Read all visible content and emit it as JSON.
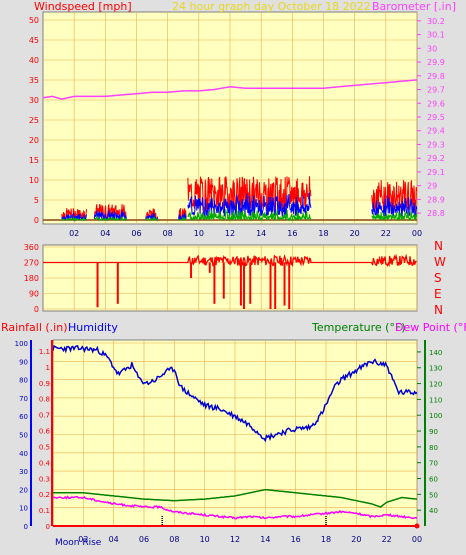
{
  "header": {
    "windspeed_label": "Windspeed [mph]",
    "graph_title": "24 hour graph day   October 18 2022",
    "barometer_label": "Barometer [.in]"
  },
  "direction_labels": [
    "N",
    "W",
    "S",
    "E",
    "N"
  ],
  "bottom_header": {
    "rainfall_label": "Rainfall (.in)",
    "humidity_label": "Humidity",
    "temperature_label": "Temperature (°F)",
    "dewpoint_label": "Dew Point (°F)"
  },
  "moon_rise_label": "Moon Rise",
  "colors": {
    "plot_bg": "#ffffc0",
    "grid": "#e6b050",
    "wind_gust": "#ff0000",
    "wind_avg": "#0000ff",
    "wind_low": "#00aa00",
    "barometer": "#ff40ff",
    "humidity": "#0000d0",
    "temperature": "#008000",
    "dewpoint": "#ff00ff",
    "rain_axis": "#ff0000",
    "humidity_axis": "#0000ff",
    "temp_axis": "#008000"
  },
  "chart_data": [
    {
      "id": "wind-baro",
      "type": "line",
      "title": "24 hour graph day   October 18 2022",
      "x_ticks": [
        "02",
        "04",
        "06",
        "08",
        "10",
        "12",
        "14",
        "16",
        "18",
        "20",
        "22",
        "00"
      ],
      "x_range_hours": [
        0,
        24
      ],
      "y_left": {
        "label": "Windspeed [mph]",
        "ticks": [
          0,
          5,
          10,
          15,
          20,
          25,
          30,
          35,
          40,
          45,
          50
        ],
        "range": [
          0,
          50
        ]
      },
      "y_right": {
        "label": "Barometer [.in]",
        "ticks": [
          28.8,
          28.9,
          29.0,
          29.1,
          29.2,
          29.3,
          29.4,
          29.5,
          29.6,
          29.7,
          29.8,
          29.9,
          30.0,
          30.1,
          30.2
        ],
        "tick_labels": [
          "28.8",
          "28.9",
          "29",
          "29.1",
          "29.2",
          "29.3",
          "29.4",
          "29.5",
          "29.6",
          "29.7",
          "29.8",
          "29.9",
          "30",
          "30.1",
          "30.2"
        ],
        "range": [
          28.75,
          30.25
        ]
      },
      "series": [
        {
          "name": "Barometer",
          "axis": "right",
          "points": [
            [
              0,
              29.64
            ],
            [
              0.6,
              29.65
            ],
            [
              1.2,
              29.63
            ],
            [
              2,
              29.65
            ],
            [
              3,
              29.65
            ],
            [
              4,
              29.65
            ],
            [
              5,
              29.66
            ],
            [
              6,
              29.67
            ],
            [
              7,
              29.68
            ],
            [
              8,
              29.68
            ],
            [
              9,
              29.69
            ],
            [
              10,
              29.69
            ],
            [
              11,
              29.7
            ],
            [
              12,
              29.72
            ],
            [
              13,
              29.71
            ],
            [
              14,
              29.71
            ],
            [
              15,
              29.71
            ],
            [
              16,
              29.71
            ],
            [
              17,
              29.71
            ],
            [
              18,
              29.71
            ],
            [
              19,
              29.72
            ],
            [
              20,
              29.73
            ],
            [
              21,
              29.74
            ],
            [
              22,
              29.75
            ],
            [
              23,
              29.76
            ],
            [
              24,
              29.77
            ]
          ]
        },
        {
          "name": "Wind gust",
          "axis": "left",
          "bands": [
            [
              1.2,
              2.8,
              0,
              3
            ],
            [
              3.3,
              5.4,
              0,
              4
            ],
            [
              6.6,
              7.4,
              0,
              3
            ],
            [
              8.7,
              9.2,
              0,
              3
            ],
            [
              9.3,
              17.2,
              2,
              11
            ],
            [
              21.1,
              24,
              2,
              10
            ]
          ]
        }
      ]
    },
    {
      "id": "wind-direction",
      "type": "line",
      "y_ticks": [
        0,
        90,
        180,
        270,
        360
      ],
      "y_range": [
        0,
        360
      ],
      "series": [
        {
          "name": "Wind direction",
          "baseline": 270,
          "noisy_span": [
            9.3,
            17.2
          ],
          "noisy_span2": [
            21.1,
            24
          ],
          "drops": [
            [
              3.5,
              10
            ],
            [
              4.8,
              30
            ],
            [
              9.5,
              180
            ],
            [
              10.7,
              210
            ],
            [
              11.0,
              30
            ],
            [
              11.6,
              60
            ],
            [
              12.7,
              20
            ],
            [
              12.9,
              0
            ],
            [
              13.3,
              30
            ],
            [
              14.6,
              0
            ],
            [
              14.9,
              0
            ],
            [
              15.5,
              20
            ],
            [
              15.8,
              0
            ]
          ]
        }
      ]
    },
    {
      "id": "rain-humidity-temp",
      "type": "line",
      "y_rain": {
        "label": "Rainfall (.in)",
        "ticks": [
          0,
          0.1,
          0.2,
          0.3,
          0.4,
          0.5,
          0.6,
          0.7,
          0.8,
          0.9,
          1,
          1.1
        ],
        "tick_labels": [
          "0",
          "0.1",
          "0.2",
          "0.3",
          "0.4",
          "0.5",
          "0.6",
          "0.7",
          "0.8",
          "0.9",
          "1",
          "1.1"
        ],
        "range": [
          0,
          1.15
        ]
      },
      "y_humidity": {
        "label": "Humidity",
        "ticks": [
          0,
          10,
          20,
          30,
          40,
          50,
          60,
          70,
          80,
          90,
          100
        ],
        "range": [
          0,
          100
        ]
      },
      "y_temp": {
        "label": "Temperature (°F)",
        "ticks": [
          40,
          50,
          60,
          70,
          80,
          90,
          100,
          110,
          120,
          130,
          140
        ],
        "range": [
          30,
          145
        ]
      },
      "series": [
        {
          "name": "Humidity",
          "axis": "humidity",
          "points": [
            [
              0,
              97
            ],
            [
              1,
              97
            ],
            [
              2,
              97
            ],
            [
              3,
              96
            ],
            [
              3.6,
              92
            ],
            [
              4.3,
              83
            ],
            [
              4.7,
              85
            ],
            [
              5.2,
              88
            ],
            [
              5.7,
              80
            ],
            [
              6.2,
              78
            ],
            [
              6.8,
              80
            ],
            [
              7.4,
              84
            ],
            [
              8,
              86
            ],
            [
              8.4,
              76
            ],
            [
              9,
              72
            ],
            [
              10,
              66
            ],
            [
              11,
              64
            ],
            [
              12,
              60
            ],
            [
              13,
              55
            ],
            [
              14,
              48
            ],
            [
              15,
              51
            ],
            [
              16,
              53
            ],
            [
              17,
              54
            ],
            [
              17.6,
              60
            ],
            [
              18,
              66
            ],
            [
              18.5,
              75
            ],
            [
              19,
              80
            ],
            [
              20,
              85
            ],
            [
              21,
              90
            ],
            [
              22,
              88
            ],
            [
              22.4,
              80
            ],
            [
              22.8,
              73
            ],
            [
              24,
              73
            ]
          ]
        },
        {
          "name": "Temperature",
          "axis": "temp",
          "points": [
            [
              0,
              51
            ],
            [
              2,
              51
            ],
            [
              3,
              50
            ],
            [
              4,
              49
            ],
            [
              5,
              48
            ],
            [
              6,
              47
            ],
            [
              8,
              46
            ],
            [
              10,
              47
            ],
            [
              12,
              49
            ],
            [
              13,
              51
            ],
            [
              14,
              53
            ],
            [
              15,
              52
            ],
            [
              16,
              51
            ],
            [
              17,
              50
            ],
            [
              18,
              49
            ],
            [
              19,
              48
            ],
            [
              20,
              46
            ],
            [
              21,
              44
            ],
            [
              21.6,
              42
            ],
            [
              22,
              45
            ],
            [
              23,
              48
            ],
            [
              24,
              47
            ]
          ]
        },
        {
          "name": "Dew Point",
          "axis": "temp",
          "points": [
            [
              0,
              48
            ],
            [
              2,
              48
            ],
            [
              3,
              46
            ],
            [
              4,
              44
            ],
            [
              5,
              43
            ],
            [
              6,
              42
            ],
            [
              7,
              42
            ],
            [
              8,
              39
            ],
            [
              9,
              38
            ],
            [
              10,
              37
            ],
            [
              11,
              36
            ],
            [
              12,
              35
            ],
            [
              13,
              36
            ],
            [
              14,
              35
            ],
            [
              15,
              36
            ],
            [
              16,
              36
            ],
            [
              17,
              37
            ],
            [
              18,
              38
            ],
            [
              19,
              39
            ],
            [
              20,
              38
            ],
            [
              21,
              36
            ],
            [
              22,
              37
            ],
            [
              23,
              36
            ],
            [
              24,
              35
            ]
          ]
        },
        {
          "name": "Rainfall",
          "axis": "rain",
          "points": [
            [
              0,
              0
            ],
            [
              24,
              0
            ]
          ]
        }
      ],
      "x_ticks": [
        "02",
        "04",
        "06",
        "08",
        "10",
        "12",
        "14",
        "16",
        "18",
        "20",
        "22",
        "00"
      ]
    }
  ]
}
